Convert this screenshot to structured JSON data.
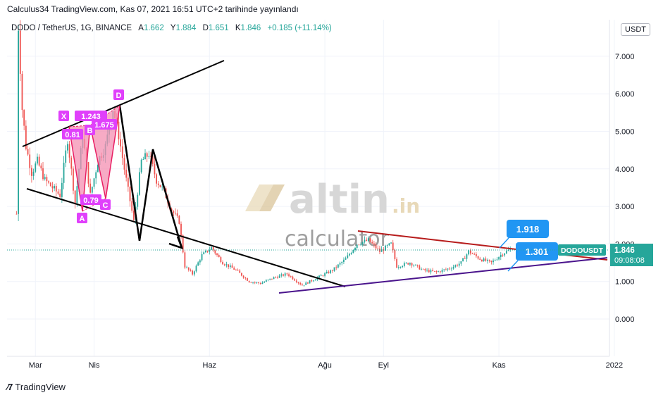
{
  "header": {
    "published": "Calculus34 TradingView.com, Kas 07, 2021 16:51 UTC+2 tarihinde yayınlandı"
  },
  "symbol": {
    "name": "DODO / TetherUS, 1G, BINANCE",
    "open_label": "A",
    "open": "1.662",
    "high_label": "Y",
    "high": "1.884",
    "low_label": "D",
    "low": "1.651",
    "close_label": "K",
    "close": "1.846",
    "change": "+0.185 (+11.14%)"
  },
  "currency": "USDT",
  "watermark": {
    "brand": "altin",
    "suffix": ".in",
    "sub": "calculator"
  },
  "footer": {
    "brand": "TradingView"
  },
  "colors": {
    "up": "#26a69a",
    "down": "#ef5350",
    "price_label": "#26a69a",
    "callout": "#2196f3",
    "pattern": "#e91e63",
    "pattern_fill": "#f48fb1",
    "resistance": "#b71c1c",
    "support": "#4a148c"
  },
  "chart_data": {
    "type": "candlestick",
    "title": "DODO / TetherUS, 1G, BINANCE",
    "xlabel": "",
    "ylabel": "",
    "x_ticks": [
      "Mar",
      "Nis",
      "Haz",
      "Ağu",
      "Eyl",
      "Kas",
      "2022"
    ],
    "y_ticks": [
      "7.000",
      "6.000",
      "5.000",
      "4.000",
      "3.000",
      "2.000",
      "1.000",
      "0.000"
    ],
    "ylim": [
      -1.0,
      7.8
    ],
    "grid": true,
    "legend": "none",
    "last_price": "1.846",
    "countdown": "09:08:08",
    "symbol_tag": "DODOUSDT",
    "callouts": [
      "1.918",
      "1.301"
    ],
    "harmonic_points": [
      "X",
      "A",
      "B",
      "C",
      "D"
    ],
    "harmonic_ratios": [
      "0.81",
      "1.243",
      "0.79",
      "1.675"
    ],
    "price_path": [
      [
        "2021-02-19",
        2.8
      ],
      [
        "2021-02-20",
        7.8
      ],
      [
        "2021-02-22",
        5.6
      ],
      [
        "2021-02-24",
        4.6
      ],
      [
        "2021-02-27",
        3.9
      ],
      [
        "2021-03-02",
        4.2
      ],
      [
        "2021-03-06",
        3.7
      ],
      [
        "2021-03-10",
        3.5
      ],
      [
        "2021-03-14",
        3.3
      ],
      [
        "2021-03-18",
        4.8
      ],
      [
        "2021-03-22",
        3.1
      ],
      [
        "2021-03-26",
        4.9
      ],
      [
        "2021-03-30",
        3.3
      ],
      [
        "2021-04-03",
        4.2
      ],
      [
        "2021-04-07",
        4.6
      ],
      [
        "2021-04-11",
        5.6
      ],
      [
        "2021-04-14",
        4.9
      ],
      [
        "2021-04-18",
        3.7
      ],
      [
        "2021-04-22",
        2.6
      ],
      [
        "2021-04-26",
        4.2
      ],
      [
        "2021-04-30",
        4.4
      ],
      [
        "2021-05-04",
        3.7
      ],
      [
        "2021-05-08",
        3.4
      ],
      [
        "2021-05-12",
        2.9
      ],
      [
        "2021-05-16",
        2.6
      ],
      [
        "2021-05-19",
        1.4
      ],
      [
        "2021-05-23",
        1.2
      ],
      [
        "2021-05-28",
        1.7
      ],
      [
        "2021-06-02",
        1.9
      ],
      [
        "2021-06-08",
        1.5
      ],
      [
        "2021-06-15",
        1.3
      ],
      [
        "2021-06-22",
        1.0
      ],
      [
        "2021-06-28",
        0.95
      ],
      [
        "2021-07-05",
        1.1
      ],
      [
        "2021-07-12",
        1.2
      ],
      [
        "2021-07-20",
        0.9
      ],
      [
        "2021-07-28",
        1.1
      ],
      [
        "2021-08-05",
        1.3
      ],
      [
        "2021-08-12",
        1.6
      ],
      [
        "2021-08-18",
        2.0
      ],
      [
        "2021-08-24",
        2.1
      ],
      [
        "2021-08-30",
        1.8
      ],
      [
        "2021-09-05",
        2.0
      ],
      [
        "2021-09-08",
        1.4
      ],
      [
        "2021-09-15",
        1.5
      ],
      [
        "2021-09-22",
        1.3
      ],
      [
        "2021-09-29",
        1.25
      ],
      [
        "2021-10-06",
        1.35
      ],
      [
        "2021-10-12",
        1.5
      ],
      [
        "2021-10-16",
        1.8
      ],
      [
        "2021-10-22",
        1.6
      ],
      [
        "2021-10-28",
        1.5
      ],
      [
        "2021-11-03",
        1.75
      ],
      [
        "2021-11-07",
        1.846
      ]
    ]
  }
}
